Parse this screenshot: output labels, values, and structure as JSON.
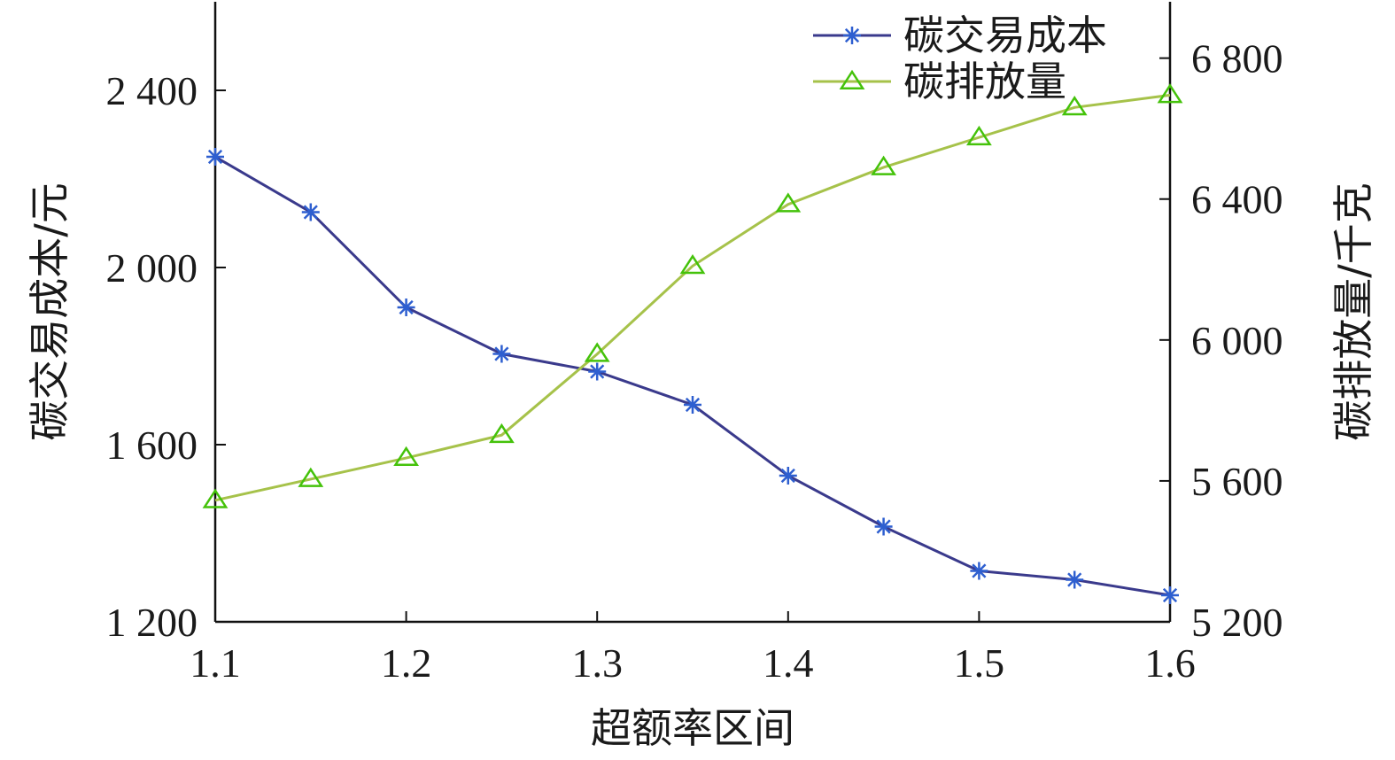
{
  "chart_data": {
    "type": "line",
    "xlabel": "超额率区间",
    "ylabel_left": "碳交易成本/元",
    "ylabel_right": "碳排放量/千克",
    "x": [
      1.1,
      1.15,
      1.2,
      1.25,
      1.3,
      1.35,
      1.4,
      1.45,
      1.5,
      1.55,
      1.6
    ],
    "xlim": [
      1.1,
      1.6
    ],
    "x_ticks": [
      1.1,
      1.2,
      1.3,
      1.4,
      1.5,
      1.6
    ],
    "x_tick_labels": [
      "1.1",
      "1.2",
      "1.3",
      "1.4",
      "1.5",
      "1.6"
    ],
    "ylim_left": [
      1200,
      2600
    ],
    "y_ticks_left": [
      1200,
      1600,
      2000,
      2400
    ],
    "y_tick_labels_left": [
      "1 200",
      "1 600",
      "2 000",
      "2 400"
    ],
    "ylim_right": [
      5200,
      6960
    ],
    "y_ticks_right": [
      5200,
      5600,
      6000,
      6400,
      6800
    ],
    "y_tick_labels_right": [
      "5 200",
      "5 600",
      "6 000",
      "6 400",
      "6 800"
    ],
    "series": [
      {
        "name": "碳交易成本",
        "axis": "left",
        "color": "#3a3a8c",
        "marker": "asterisk",
        "marker_color": "#2e5fd0",
        "values": [
          2250,
          2125,
          1910,
          1805,
          1765,
          1690,
          1530,
          1415,
          1315,
          1295,
          1260
        ]
      },
      {
        "name": "碳排放量",
        "axis": "right",
        "color": "#a6c24a",
        "marker": "triangle",
        "marker_color": "#44c20a",
        "values": [
          5545,
          5605,
          5665,
          5730,
          5960,
          6210,
          6385,
          6490,
          6575,
          6660,
          6695
        ]
      }
    ],
    "legend_position": "top-right",
    "grid": false
  }
}
